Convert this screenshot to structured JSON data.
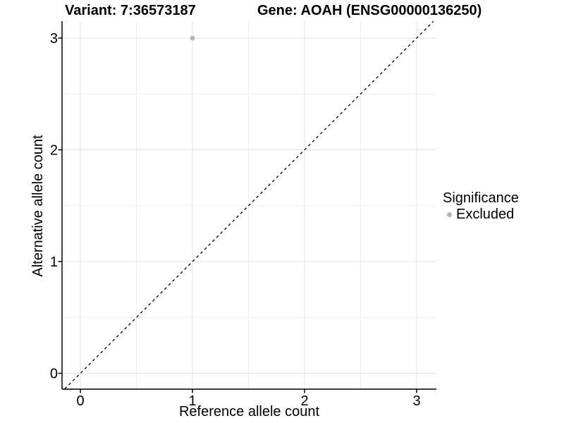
{
  "chart_data": {
    "type": "scatter",
    "title_left": "Variant: 7:36573187",
    "title_right": "Gene: AOAH (ENSG00000136250)",
    "xlabel": "Reference allele count",
    "ylabel": "Alternative allele count",
    "x_ticks": [
      0,
      1,
      2,
      3
    ],
    "y_ticks": [
      0,
      1,
      2,
      3
    ],
    "xlim": [
      -0.165,
      3.18
    ],
    "ylim": [
      -0.14,
      3.15
    ],
    "grid": "major and minor gridlines at 0.5 intervals, light gray on white panel",
    "points": [
      {
        "x": 1,
        "y": 3,
        "series": "Excluded"
      }
    ],
    "identity_line": {
      "equation": "y = x",
      "style": "dashed",
      "color": "#000000"
    },
    "legend_position": "right"
  },
  "legend": {
    "title": "Significance",
    "items": [
      {
        "label": "Excluded",
        "color": "#b5b5b5",
        "marker": "circle"
      }
    ]
  },
  "colors": {
    "background": "#ffffff",
    "point_excluded": "#b5b5b5",
    "grid_major": "#e3e3e3",
    "grid_minor": "#eeeeee",
    "axis_line": "#000000",
    "tick_label": "#000000"
  }
}
